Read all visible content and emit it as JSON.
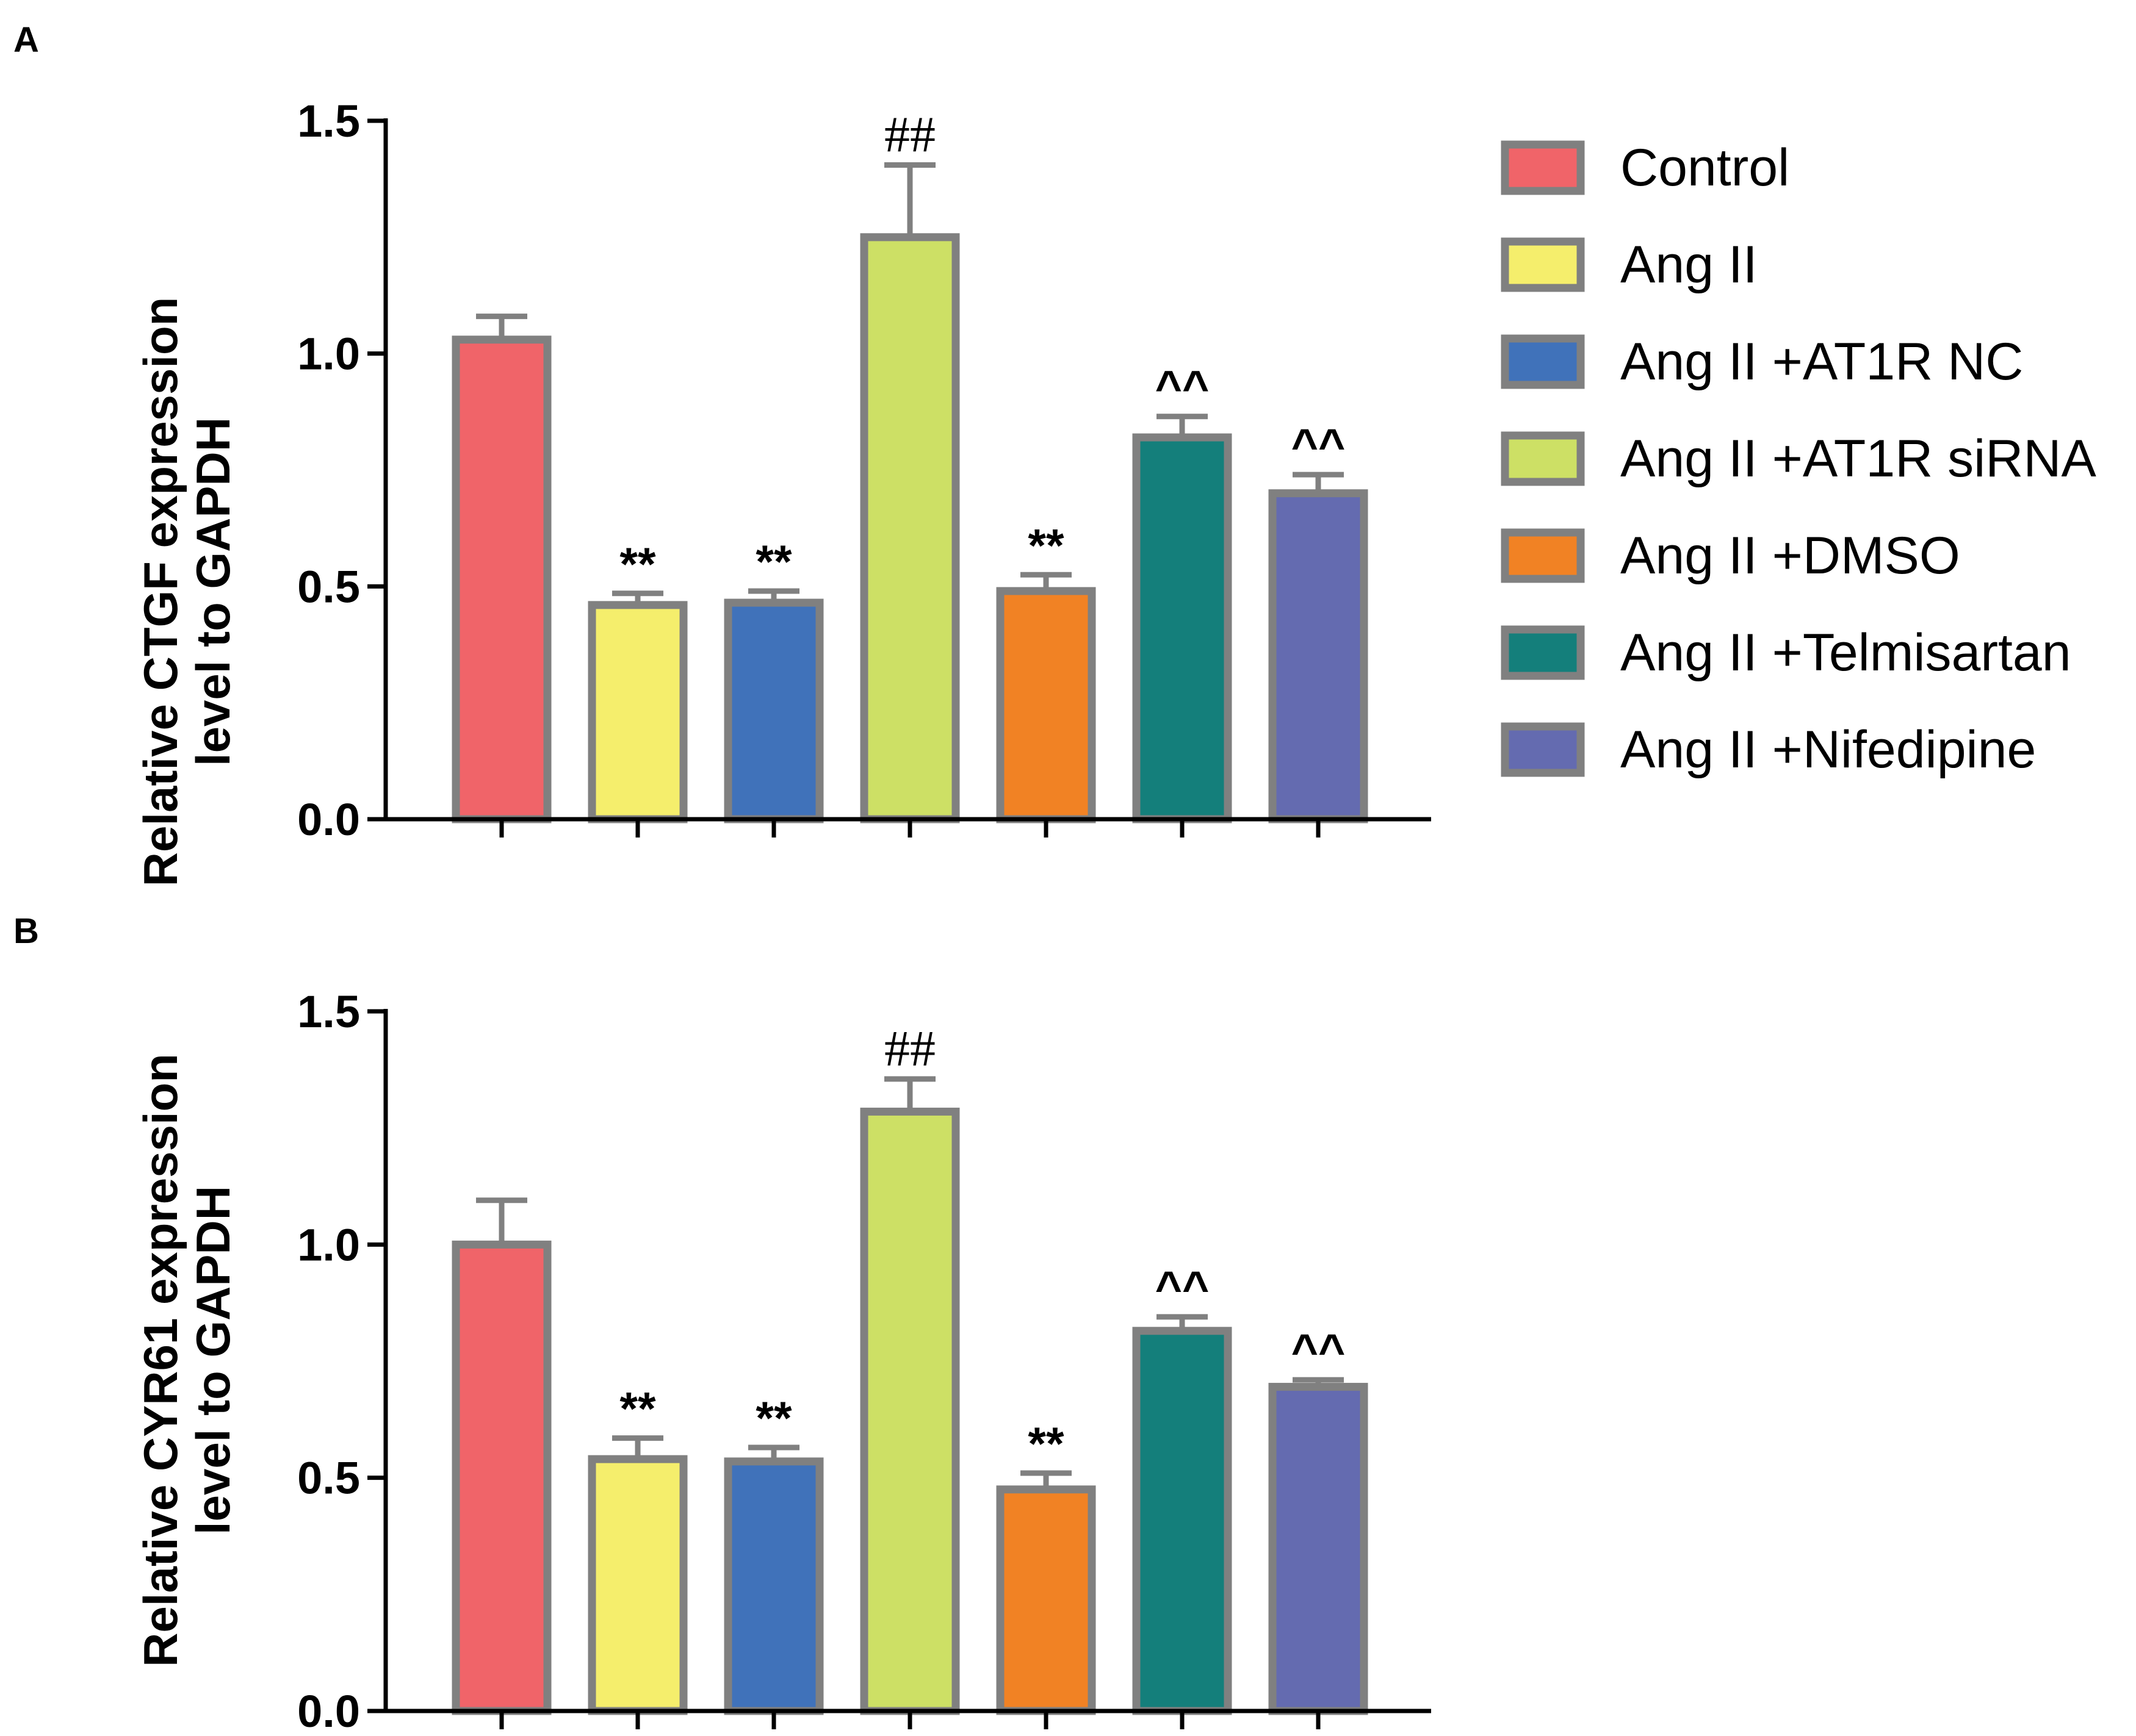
{
  "legend": [
    {
      "label": "Control",
      "color": "#f06469"
    },
    {
      "label": "Ang II",
      "color": "#f5ee6c"
    },
    {
      "label": "Ang II +AT1R NC",
      "color": "#4072ba"
    },
    {
      "label": "Ang II +AT1R siRNA",
      "color": "#cde065"
    },
    {
      "label": "Ang II +DMSO",
      "color": "#f18224"
    },
    {
      "label": "Ang II +Telmisartan",
      "color": "#147f7b"
    },
    {
      "label": "Ang II +Nifedipine",
      "color": "#646bb0"
    }
  ],
  "bar_outline_color": "#808080",
  "chart_data": [
    {
      "panel": "A",
      "type": "bar",
      "title": "",
      "xlabel": "",
      "ylabel": [
        "Relative CTGF expression",
        "level to GAPDH"
      ],
      "ylim": [
        0,
        1.5
      ],
      "yticks": [
        "0.0",
        "0.5",
        "1.0",
        "1.5"
      ],
      "categories": [
        "Control",
        "Ang II",
        "Ang II +AT1R NC",
        "Ang II +AT1R siRNA",
        "Ang II +DMSO",
        "Ang II +Telmisartan",
        "Ang II +Nifedipine"
      ],
      "values": [
        1.03,
        0.46,
        0.465,
        1.25,
        0.49,
        0.82,
        0.7
      ],
      "errors": [
        0.05,
        0.025,
        0.025,
        0.155,
        0.035,
        0.045,
        0.04
      ],
      "annotations": [
        "",
        "**",
        "**",
        "##",
        "**",
        "^^",
        "^^"
      ]
    },
    {
      "panel": "B",
      "type": "bar",
      "title": "",
      "xlabel": "",
      "ylabel": [
        "Relative CYR61 expression",
        "level to GAPDH"
      ],
      "ylim": [
        0,
        1.5
      ],
      "yticks": [
        "0.0",
        "0.5",
        "1.0",
        "1.5"
      ],
      "categories": [
        "Control",
        "Ang II",
        "Ang II +AT1R NC",
        "Ang II +AT1R siRNA",
        "Ang II +DMSO",
        "Ang II +Telmisartan",
        "Ang II +Nifedipine"
      ],
      "values": [
        1.0,
        0.54,
        0.535,
        1.285,
        0.475,
        0.815,
        0.695
      ],
      "errors": [
        0.095,
        0.045,
        0.03,
        0.07,
        0.035,
        0.03,
        0.015
      ],
      "annotations": [
        "",
        "**",
        "**",
        "##",
        "**",
        "^^",
        "^^"
      ]
    }
  ]
}
